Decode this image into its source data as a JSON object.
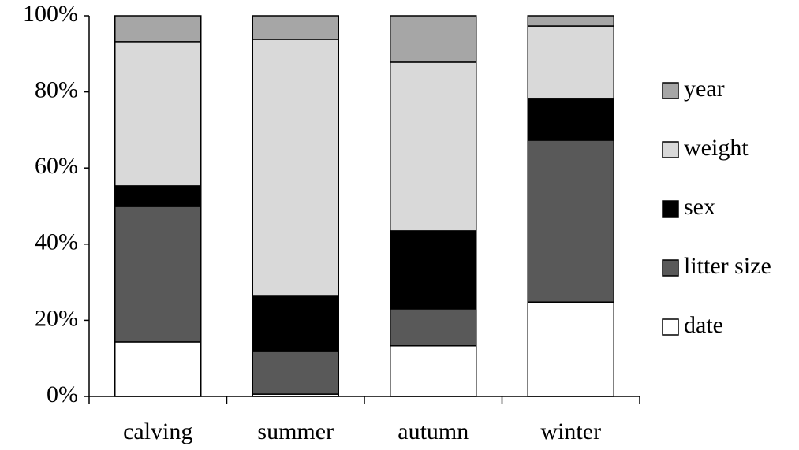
{
  "chart_data": {
    "type": "stacked_bar_percent",
    "categories": [
      "calving",
      "summer",
      "autumn",
      "winter"
    ],
    "series": [
      {
        "name": "date",
        "color": "#ffffff",
        "values": [
          14.3,
          0.6,
          13.3,
          24.8
        ]
      },
      {
        "name": "litter size",
        "color": "#595959",
        "values": [
          35.6,
          11.2,
          9.7,
          42.5
        ]
      },
      {
        "name": "sex",
        "color": "#000000",
        "values": [
          5.4,
          14.7,
          20.5,
          11.0
        ]
      },
      {
        "name": "weight",
        "color": "#d9d9d9",
        "values": [
          37.9,
          67.3,
          44.3,
          19.0
        ]
      },
      {
        "name": "year",
        "color": "#a6a6a6",
        "values": [
          6.8,
          6.2,
          12.2,
          2.7
        ]
      }
    ],
    "ylim": [
      0,
      100
    ],
    "yticks": [
      {
        "value": 0,
        "label": "0%"
      },
      {
        "value": 20,
        "label": "20%"
      },
      {
        "value": 40,
        "label": "40%"
      },
      {
        "value": 60,
        "label": "60%"
      },
      {
        "value": 80,
        "label": "80%"
      },
      {
        "value": 100,
        "label": "100%"
      }
    ],
    "grid": false,
    "legend": "right"
  }
}
